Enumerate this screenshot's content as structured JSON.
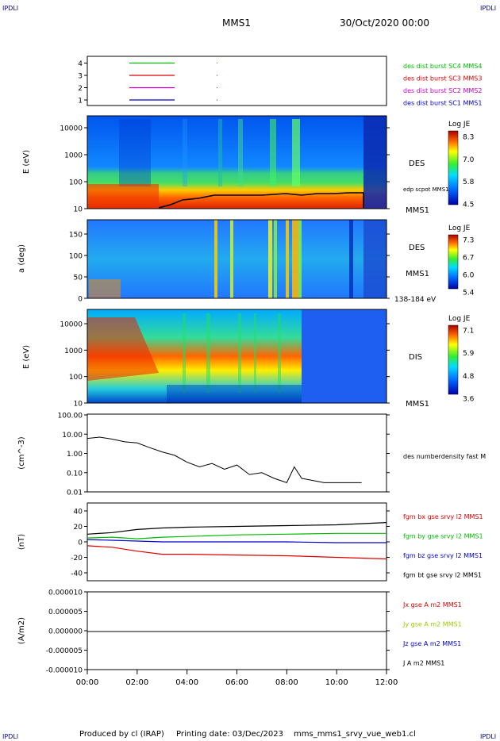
{
  "corners": {
    "tl": "IPDLI",
    "tr": "IPDLI",
    "bl": "IPDLI",
    "br": "IPDLI",
    "color": "#0000aa"
  },
  "header": {
    "spacecraft": "MMS1",
    "date": "30/Oct/2020 00:00"
  },
  "footer": {
    "credit": "Produced by cl (IRAP)",
    "printing": "Printing date: 03/Dec/2023",
    "file": "mms_mms1_srvy_vue_web1.cl"
  },
  "chart_data": [
    {
      "type": "line",
      "panel": "burst",
      "yticks": [
        "4",
        "3",
        "2",
        "1"
      ],
      "series": [
        {
          "name": "des dist burst SC1 MMS1",
          "color": "#0000cc",
          "y": 1
        },
        {
          "name": "des dist burst SC2 MMS2",
          "color": "#cc00cc",
          "y": 2
        },
        {
          "name": "des dist burst SC3 MMS3",
          "color": "#dd0000",
          "y": 3
        },
        {
          "name": "des dist burst SC4 MMS4",
          "color": "#00bb00",
          "y": 4
        }
      ]
    },
    {
      "type": "heatmap",
      "panel": "des_energy",
      "ylabel": "E (eV)",
      "yticks": [
        "10000",
        "1000",
        "100",
        "10"
      ],
      "labels": [
        "DES",
        "MMS1"
      ],
      "overlay_label": "edp scpot MMS1",
      "colorbar": {
        "title": "Log JE",
        "ticks": [
          "8.3",
          "7.0",
          "5.8",
          "4.5"
        ]
      }
    },
    {
      "type": "heatmap",
      "panel": "des_pitch",
      "ylabel": "a (deg)",
      "yticks": [
        "150",
        "100",
        "50",
        "0"
      ],
      "labels": [
        "DES",
        "MMS1",
        "138-184 eV"
      ],
      "colorbar": {
        "title": "Log JE",
        "ticks": [
          "7.3",
          "6.7",
          "6.0",
          "5.4"
        ]
      }
    },
    {
      "type": "heatmap",
      "panel": "dis_energy",
      "ylabel": "E (eV)",
      "yticks": [
        "10000",
        "1000",
        "100",
        "10"
      ],
      "labels": [
        "DIS",
        "MMS1"
      ],
      "colorbar": {
        "title": "Log JE",
        "ticks": [
          "7.1",
          "5.9",
          "4.8",
          "3.6"
        ]
      }
    },
    {
      "type": "line",
      "panel": "density",
      "ylabel": "(cm^-3)",
      "yticks": [
        "100.00",
        "10.00",
        "1.00",
        "0.10",
        "0.01"
      ],
      "series": [
        {
          "name": "des numberdensity fast M",
          "color": "#000000",
          "x": [
            0,
            0.5,
            1,
            1.5,
            2,
            2.5,
            3,
            3.5,
            4,
            4.5,
            5,
            5.5,
            6,
            6.5,
            7,
            7.5,
            8,
            8.3,
            8.6,
            9,
            9.5,
            10,
            10.5,
            11
          ],
          "y": [
            6,
            7,
            5.5,
            4,
            3.5,
            2,
            1.2,
            0.8,
            0.35,
            0.2,
            0.3,
            0.15,
            0.25,
            0.08,
            0.1,
            0.05,
            0.03,
            0.2,
            0.05,
            0.04,
            0.03,
            0.03,
            0.03,
            0.03
          ]
        }
      ]
    },
    {
      "type": "line",
      "panel": "fgm",
      "ylabel": "(nT)",
      "yticks": [
        "40",
        "20",
        "0",
        "-20",
        "-40"
      ],
      "series": [
        {
          "name": "fgm bx gse srvy l2 MMS1",
          "color": "#dd0000",
          "x": [
            0,
            1,
            2,
            3,
            4,
            6,
            8,
            10,
            12
          ],
          "y": [
            -5,
            -7,
            -12,
            -16,
            -16,
            -17,
            -18,
            -20,
            -22
          ]
        },
        {
          "name": "fgm by gse srvy l2 MMS1",
          "color": "#00bb00",
          "x": [
            0,
            1,
            2,
            3,
            4,
            6,
            8,
            10,
            12
          ],
          "y": [
            5,
            6,
            4,
            6,
            7,
            9,
            10,
            11,
            11
          ]
        },
        {
          "name": "fgm bz gse srvy l2 MMS1",
          "color": "#0000cc",
          "x": [
            0,
            1,
            2,
            3,
            4,
            6,
            8,
            10,
            12
          ],
          "y": [
            3,
            2,
            1,
            0,
            0,
            0,
            0,
            -1,
            -1
          ]
        },
        {
          "name": "fgm bt gse srvy l2 MMS1",
          "color": "#000000",
          "x": [
            0,
            1,
            2,
            3,
            4,
            6,
            8,
            10,
            12
          ],
          "y": [
            10,
            12,
            16,
            18,
            19,
            20,
            21,
            22,
            25
          ]
        }
      ]
    },
    {
      "type": "line",
      "panel": "current",
      "ylabel": "(A/m2)",
      "yticks": [
        "0.000010",
        "0.000005",
        "0.000000",
        "-0.000005",
        "-0.000010"
      ],
      "series": [
        {
          "name": "Jx gse A m2 MMS1",
          "color": "#dd0000"
        },
        {
          "name": "Jy gse A m2 MMS1",
          "color": "#99cc00"
        },
        {
          "name": "Jz gse A m2 MMS1",
          "color": "#0000cc"
        },
        {
          "name": "J A m2 MMS1",
          "color": "#000000"
        }
      ]
    }
  ],
  "xaxis": {
    "ticks": [
      "00:00",
      "02:00",
      "04:00",
      "06:00",
      "08:00",
      "10:00",
      "12:00"
    ]
  }
}
